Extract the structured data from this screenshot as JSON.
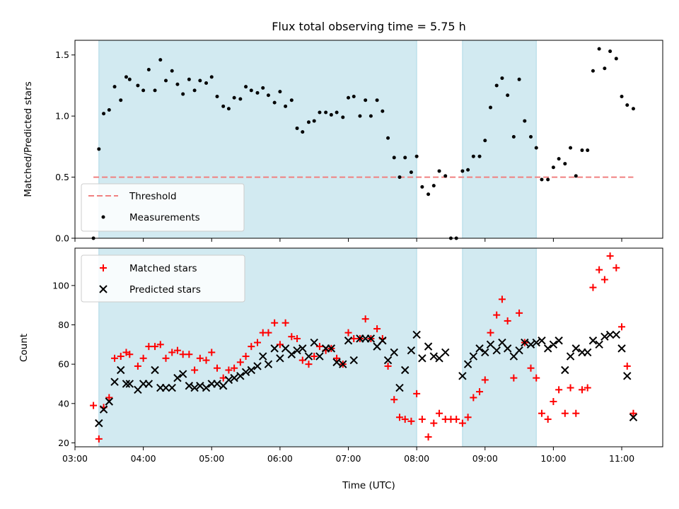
{
  "chart_data": [
    {
      "type": "scatter",
      "title": "Flux total observing time = 5.75 h",
      "ylabel": "Matched/Predicted stars",
      "xlim": [
        3.0,
        11.6
      ],
      "ylim": [
        0,
        1.62
      ],
      "yticks": [
        0,
        0.5,
        1.0,
        1.5
      ],
      "ytick_labels": [
        "0.0",
        "0.5",
        "1.0",
        "1.5"
      ],
      "shaded_intervals": [
        [
          3.35,
          8.0
        ],
        [
          8.67,
          9.75
        ]
      ],
      "shade_color": "#add8e6",
      "legend_position": "lower left",
      "series": [
        {
          "name": "Threshold",
          "kind": "dashed-line",
          "color": "#f08080",
          "x": [
            3.27,
            11.17
          ],
          "y": [
            0.5,
            0.5
          ]
        },
        {
          "name": "Measurements",
          "kind": "dot",
          "color": "#000000",
          "x": [
            3.27,
            3.35,
            3.42,
            3.5,
            3.58,
            3.67,
            3.75,
            3.8,
            3.92,
            4.0,
            4.08,
            4.17,
            4.25,
            4.33,
            4.42,
            4.5,
            4.58,
            4.67,
            4.75,
            4.83,
            4.92,
            5.0,
            5.08,
            5.17,
            5.25,
            5.33,
            5.42,
            5.5,
            5.58,
            5.67,
            5.75,
            5.83,
            5.92,
            6.0,
            6.08,
            6.17,
            6.25,
            6.33,
            6.42,
            6.5,
            6.58,
            6.67,
            6.75,
            6.83,
            6.92,
            7.0,
            7.08,
            7.17,
            7.25,
            7.33,
            7.42,
            7.5,
            7.58,
            7.67,
            7.75,
            7.83,
            7.92,
            8.0,
            8.08,
            8.17,
            8.25,
            8.33,
            8.42,
            8.5,
            8.58,
            8.67,
            8.75,
            8.83,
            8.92,
            9.0,
            9.08,
            9.17,
            9.25,
            9.33,
            9.42,
            9.5,
            9.58,
            9.67,
            9.75,
            9.83,
            9.92,
            10.0,
            10.08,
            10.17,
            10.25,
            10.33,
            10.42,
            10.5,
            10.58,
            10.67,
            10.75,
            10.83,
            10.92,
            11.0,
            11.08,
            11.17
          ],
          "y": [
            0.0,
            0.73,
            1.02,
            1.05,
            1.24,
            1.13,
            1.32,
            1.3,
            1.25,
            1.21,
            1.38,
            1.21,
            1.46,
            1.29,
            1.37,
            1.26,
            1.18,
            1.3,
            1.21,
            1.29,
            1.27,
            1.32,
            1.16,
            1.08,
            1.06,
            1.15,
            1.14,
            1.24,
            1.21,
            1.19,
            1.23,
            1.17,
            1.11,
            1.2,
            1.08,
            1.13,
            0.9,
            0.87,
            0.95,
            0.96,
            1.03,
            1.03,
            1.01,
            1.03,
            0.99,
            1.15,
            1.16,
            1.0,
            1.13,
            1.0,
            1.13,
            1.04,
            0.82,
            0.66,
            0.5,
            0.66,
            0.54,
            0.67,
            0.42,
            0.36,
            0.43,
            0.55,
            0.51,
            0.0,
            0.0,
            0.55,
            0.56,
            0.67,
            0.67,
            0.8,
            1.07,
            1.25,
            1.31,
            1.17,
            0.83,
            1.3,
            0.96,
            0.83,
            0.74,
            0.48,
            0.48,
            0.58,
            0.65,
            0.61,
            0.74,
            0.51,
            0.72,
            0.72,
            1.37,
            1.55,
            1.39,
            1.53,
            1.47,
            1.16,
            1.09,
            1.06
          ]
        }
      ]
    },
    {
      "type": "scatter",
      "ylabel": "Count",
      "xlabel": "Time (UTC)",
      "xlim": [
        3.0,
        11.6
      ],
      "ylim": [
        18,
        119
      ],
      "xticks": [
        3,
        4,
        5,
        6,
        7,
        8,
        9,
        10,
        11
      ],
      "xtick_labels": [
        "03:00",
        "04:00",
        "05:00",
        "06:00",
        "07:00",
        "08:00",
        "09:00",
        "10:00",
        "11:00"
      ],
      "yticks": [
        20,
        40,
        60,
        80,
        100
      ],
      "ytick_labels": [
        "20",
        "40",
        "60",
        "80",
        "100"
      ],
      "shaded_intervals": [
        [
          3.35,
          8.0
        ],
        [
          8.67,
          9.75
        ]
      ],
      "shade_color": "#add8e6",
      "legend_position": "upper left",
      "series": [
        {
          "name": "Matched stars",
          "kind": "plus",
          "color": "#ff0000",
          "x": [
            3.27,
            3.35,
            3.42,
            3.5,
            3.58,
            3.67,
            3.75,
            3.8,
            3.92,
            4.0,
            4.08,
            4.17,
            4.25,
            4.33,
            4.42,
            4.5,
            4.58,
            4.67,
            4.75,
            4.83,
            4.92,
            5.0,
            5.08,
            5.17,
            5.25,
            5.33,
            5.42,
            5.5,
            5.58,
            5.67,
            5.75,
            5.83,
            5.92,
            6.0,
            6.08,
            6.17,
            6.25,
            6.33,
            6.42,
            6.5,
            6.58,
            6.67,
            6.75,
            6.83,
            6.92,
            7.0,
            7.08,
            7.17,
            7.25,
            7.33,
            7.42,
            7.5,
            7.58,
            7.67,
            7.75,
            7.83,
            7.92,
            8.0,
            8.08,
            8.17,
            8.25,
            8.33,
            8.42,
            8.5,
            8.58,
            8.67,
            8.75,
            8.83,
            8.92,
            9.0,
            9.08,
            9.17,
            9.25,
            9.33,
            9.42,
            9.5,
            9.58,
            9.67,
            9.75,
            9.83,
            9.92,
            10.0,
            10.08,
            10.17,
            10.25,
            10.33,
            10.42,
            10.5,
            10.58,
            10.67,
            10.75,
            10.83,
            10.92,
            11.0,
            11.08,
            11.17
          ],
          "y": [
            39,
            22,
            38,
            43,
            63,
            64,
            66,
            65,
            59,
            63,
            69,
            69,
            70,
            63,
            66,
            67,
            65,
            65,
            57,
            63,
            62,
            66,
            58,
            53,
            57,
            58,
            61,
            64,
            69,
            71,
            76,
            76,
            81,
            70,
            81,
            74,
            73,
            62,
            60,
            64,
            69,
            67,
            68,
            63,
            60,
            76,
            73,
            73,
            83,
            73,
            78,
            73,
            59,
            42,
            33,
            32,
            31,
            45,
            32,
            23,
            30,
            35,
            32,
            32,
            32,
            30,
            33,
            43,
            46,
            52,
            76,
            85,
            93,
            82,
            53,
            86,
            71,
            58,
            53,
            35,
            32,
            41,
            47,
            35,
            48,
            35,
            47,
            48,
            99,
            108,
            103,
            115,
            109,
            79,
            59,
            35
          ]
        },
        {
          "name": "Predicted stars",
          "kind": "x",
          "color": "#000000",
          "x": [
            3.35,
            3.42,
            3.5,
            3.58,
            3.67,
            3.75,
            3.8,
            3.92,
            4.0,
            4.08,
            4.17,
            4.25,
            4.33,
            4.42,
            4.5,
            4.58,
            4.67,
            4.75,
            4.83,
            4.92,
            5.0,
            5.08,
            5.17,
            5.25,
            5.33,
            5.42,
            5.5,
            5.58,
            5.67,
            5.75,
            5.83,
            5.92,
            6.0,
            6.08,
            6.17,
            6.25,
            6.33,
            6.42,
            6.5,
            6.58,
            6.67,
            6.75,
            6.83,
            6.92,
            7.0,
            7.08,
            7.17,
            7.25,
            7.33,
            7.42,
            7.5,
            7.58,
            7.67,
            7.75,
            7.83,
            7.92,
            8.0,
            8.08,
            8.17,
            8.25,
            8.33,
            8.42,
            8.67,
            8.75,
            8.83,
            8.92,
            9.0,
            9.08,
            9.17,
            9.25,
            9.33,
            9.42,
            9.5,
            9.58,
            9.67,
            9.75,
            9.83,
            9.92,
            10.0,
            10.08,
            10.17,
            10.25,
            10.33,
            10.42,
            10.5,
            10.58,
            10.67,
            10.75,
            10.83,
            10.92,
            11.0,
            11.08,
            11.17
          ],
          "y": [
            30,
            37,
            41,
            51,
            57,
            50,
            50,
            47,
            50,
            50,
            57,
            48,
            48,
            48,
            53,
            55,
            49,
            48,
            49,
            48,
            50,
            50,
            49,
            52,
            53,
            54,
            56,
            57,
            59,
            64,
            60,
            68,
            63,
            68,
            65,
            67,
            68,
            64,
            71,
            64,
            68,
            68,
            61,
            60,
            72,
            62,
            73,
            73,
            73,
            69,
            72,
            62,
            66,
            48,
            57,
            67,
            75,
            63,
            69,
            64,
            63,
            66,
            54,
            60,
            64,
            68,
            66,
            70,
            67,
            71,
            68,
            64,
            67,
            71,
            70,
            71,
            72,
            68,
            70,
            72,
            57,
            64,
            68,
            66,
            66,
            72,
            70,
            74,
            75,
            75,
            68,
            54,
            33
          ]
        }
      ]
    }
  ]
}
